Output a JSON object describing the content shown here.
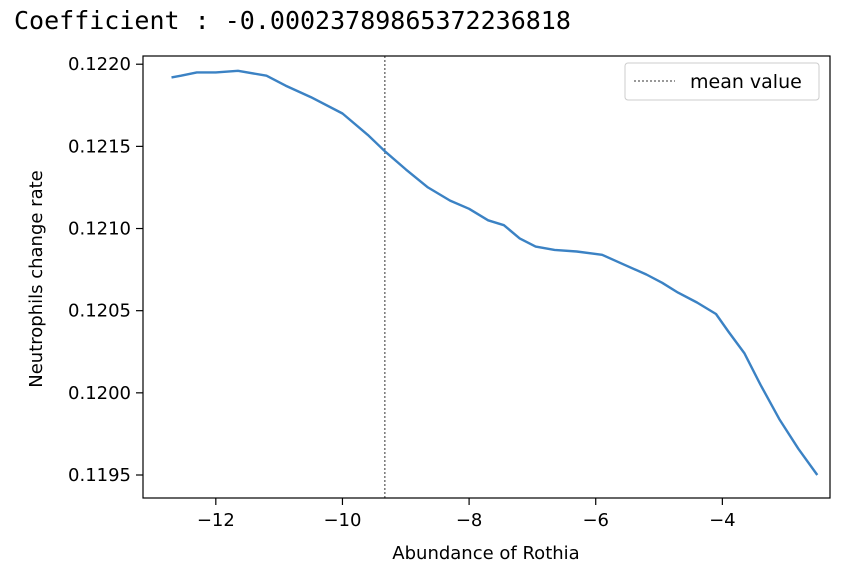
{
  "header": {
    "coefficient_label": "Coefficient",
    "separator": " : ",
    "coefficient_value": "-0.00023789865372236818"
  },
  "chart_data": {
    "type": "line",
    "xlabel": "Abundance of Rothia",
    "ylabel": "Neutrophils change rate",
    "xlim": [
      -13.15,
      -2.3
    ],
    "ylim": [
      0.11936,
      0.12205
    ],
    "xticks": [
      -12,
      -10,
      -8,
      -6,
      -4
    ],
    "xtick_labels": [
      "−12",
      "−10",
      "−8",
      "−6",
      "−4"
    ],
    "yticks": [
      0.1195,
      0.12,
      0.1205,
      0.121,
      0.1215,
      0.122
    ],
    "ytick_labels": [
      "0.1195",
      "0.1200",
      "0.1205",
      "0.1210",
      "0.1215",
      "0.1220"
    ],
    "grid": false,
    "legend": {
      "position": "top-right",
      "entries": [
        {
          "label": "mean value",
          "style": "dotted"
        }
      ]
    },
    "mean_value_x": -9.33,
    "series": [
      {
        "color": "#3b82c4",
        "x": [
          -12.7,
          -12.55,
          -12.3,
          -12.0,
          -11.65,
          -11.2,
          -10.9,
          -10.5,
          -10.0,
          -9.6,
          -9.33,
          -9.0,
          -8.65,
          -8.3,
          -8.0,
          -7.7,
          -7.45,
          -7.2,
          -6.95,
          -6.65,
          -6.3,
          -5.9,
          -5.55,
          -5.2,
          -4.95,
          -4.7,
          -4.4,
          -4.1,
          -3.9,
          -3.65,
          -3.4,
          -3.1,
          -2.8,
          -2.5
        ],
        "y": [
          0.12192,
          0.12193,
          0.12195,
          0.12195,
          0.12196,
          0.12193,
          0.12187,
          0.1218,
          0.1217,
          0.12157,
          0.12147,
          0.12136,
          0.12125,
          0.12117,
          0.12112,
          0.12105,
          0.12102,
          0.12094,
          0.12089,
          0.12087,
          0.12086,
          0.12084,
          0.12078,
          0.12072,
          0.12067,
          0.12061,
          0.12055,
          0.12048,
          0.12037,
          0.12024,
          0.12005,
          0.11984,
          0.11966,
          0.1195
        ]
      }
    ]
  }
}
